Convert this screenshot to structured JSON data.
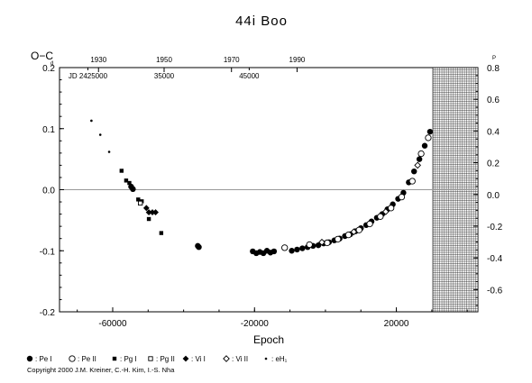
{
  "chart_data": {
    "type": "scatter",
    "title": "44i Boo",
    "xlabel": "Epoch",
    "ylabel": "O−C",
    "ylabel_unit": "d",
    "right_ylabel_unit": "P",
    "xlim": [
      -75000,
      43000
    ],
    "ylim": [
      -0.2,
      0.2
    ],
    "right_ylim": [
      -0.74,
      0.8
    ],
    "x_ticks": [
      -60000,
      -20000,
      20000
    ],
    "y_ticks": [
      -0.2,
      -0.1,
      0.0,
      0.1,
      0.2
    ],
    "y_tick_labels": [
      "-0.2",
      "-0.1",
      "0.0",
      "0.1",
      "0.2"
    ],
    "right_ticks": [
      -0.6,
      -0.4,
      -0.2,
      0.0,
      0.2,
      0.4,
      0.6,
      0.8
    ],
    "right_tick_labels": [
      "-0.6",
      "-0.4",
      "-0.2",
      "0.0",
      "0.2",
      "0.4",
      "0.6",
      "0.8"
    ],
    "top_year_axis": {
      "years": [
        "1930",
        "1950",
        "1970",
        "1990"
      ],
      "year_epochs": [
        -64000,
        -45500,
        -26500,
        -8000
      ]
    },
    "top_jd_axis": {
      "labels": [
        "JD 2425000",
        "35000",
        "45000"
      ],
      "label_epochs": [
        -67000,
        -45500,
        -21500
      ]
    },
    "zero_line": true,
    "future_region_start": 30300,
    "legend": [
      {
        "label": ": Pe I",
        "marker": "filled-circle"
      },
      {
        "label": ": Pe II",
        "marker": "open-circle"
      },
      {
        "label": ": Pg I",
        "marker": "filled-square"
      },
      {
        "label": ": Pg II",
        "marker": "open-square"
      },
      {
        "label": ": Vi I",
        "marker": "filled-diamond"
      },
      {
        "label": ": Vi II",
        "marker": "open-diamond"
      },
      {
        "label": ": eH₁",
        "marker": "small-dot"
      }
    ],
    "copyright": "Copyright 2000 J.M. Kreiner, C.-H. Kim, I.-S. Nha",
    "series": [
      {
        "name": ": eH₁",
        "marker": "small-dot",
        "x": [
          -66000,
          -63500,
          -61000
        ],
        "y": [
          0.113,
          0.09,
          0.062
        ]
      },
      {
        "name": ": Pg I",
        "marker": "filled-square",
        "x": [
          -57500,
          -56200,
          -55300,
          -52800,
          -51800,
          -49800,
          -46300
        ],
        "y": [
          0.031,
          0.015,
          0.011,
          -0.016,
          -0.019,
          -0.048,
          -0.071
        ]
      },
      {
        "name": ": Vi I",
        "marker": "filled-diamond",
        "x": [
          -50500,
          -49800,
          -48800,
          -47900
        ],
        "y": [
          -0.03,
          -0.037,
          -0.037,
          -0.037
        ]
      },
      {
        "name": ": Pe I",
        "marker": "filled-circle",
        "x": [
          -54800,
          -54300,
          -36000,
          -35700,
          -20500,
          -19500,
          -18500,
          -17500,
          -16500,
          -15500,
          -14500,
          -9500,
          -8000,
          -6500,
          -5000,
          -3500,
          -2000,
          -500,
          1000,
          2500,
          4000,
          5500,
          7000,
          8500,
          10000,
          11500,
          13000,
          14500,
          16000,
          17500,
          19000,
          20500,
          22000,
          23500,
          25000,
          26500,
          28000,
          29500
        ],
        "y": [
          0.005,
          0.001,
          -0.092,
          -0.094,
          -0.101,
          -0.104,
          -0.102,
          -0.104,
          -0.1,
          -0.103,
          -0.101,
          -0.1,
          -0.098,
          -0.096,
          -0.094,
          -0.092,
          -0.091,
          -0.088,
          -0.086,
          -0.083,
          -0.08,
          -0.076,
          -0.073,
          -0.068,
          -0.063,
          -0.058,
          -0.052,
          -0.046,
          -0.04,
          -0.032,
          -0.024,
          -0.015,
          -0.005,
          0.012,
          0.03,
          0.05,
          0.072,
          0.095
        ]
      },
      {
        "name": ": Pe II",
        "marker": "open-circle",
        "x": [
          -11500,
          -4500,
          500,
          3500,
          6500,
          9500,
          12500,
          15500,
          18500,
          21500,
          24500,
          27000,
          29000
        ],
        "y": [
          -0.095,
          -0.09,
          -0.087,
          -0.081,
          -0.074,
          -0.066,
          -0.056,
          -0.044,
          -0.03,
          -0.012,
          0.014,
          0.059,
          0.085
        ]
      },
      {
        "name": ": Pg II",
        "marker": "open-square",
        "x": [
          -52200
        ],
        "y": [
          -0.022
        ]
      },
      {
        "name": ": Vi II",
        "marker": "open-diamond",
        "x": [
          -1000,
          8000,
          17000,
          26000
        ],
        "y": [
          -0.086,
          -0.069,
          -0.036,
          0.04
        ]
      }
    ]
  }
}
